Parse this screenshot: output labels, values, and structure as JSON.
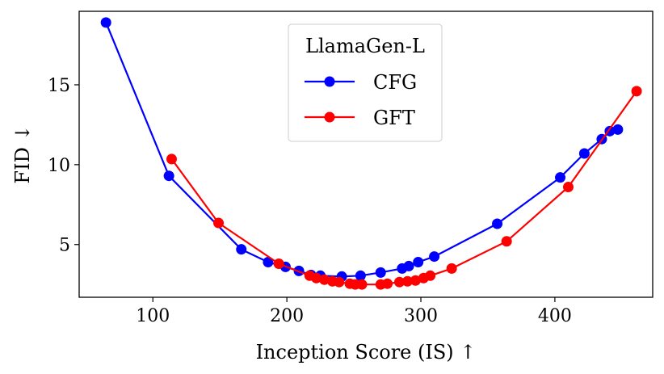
{
  "chart_data": {
    "type": "line",
    "title": "",
    "xlabel": "Inception Score (IS) ↑",
    "ylabel": "FID ↓",
    "xlim": [
      45,
      473
    ],
    "ylim": [
      1.7,
      19.6
    ],
    "xticks": [
      100,
      200,
      300,
      400
    ],
    "yticks": [
      5,
      10,
      15
    ],
    "grid": false,
    "legend": {
      "title": "LlamaGen-L",
      "placement": "top-center"
    },
    "series": [
      {
        "name": "CFG",
        "color": "#0000ff",
        "x": [
          65,
          112,
          166,
          186,
          199,
          209,
          218,
          225,
          241,
          255,
          270,
          286,
          291,
          298,
          310,
          357,
          404,
          422,
          435,
          441,
          447
        ],
        "y": [
          18.9,
          9.3,
          4.7,
          3.9,
          3.6,
          3.35,
          3.1,
          3.05,
          3.0,
          3.05,
          3.25,
          3.5,
          3.65,
          3.9,
          4.25,
          6.3,
          9.2,
          10.7,
          11.6,
          12.1,
          12.2
        ]
      },
      {
        "name": "GFT",
        "color": "#ff0000",
        "x": [
          114,
          149,
          194,
          217,
          222,
          228,
          234,
          239,
          247,
          251,
          256,
          270,
          275,
          284,
          290,
          296,
          302,
          307,
          323,
          364,
          410,
          461
        ],
        "y": [
          10.35,
          6.35,
          3.8,
          3.05,
          2.9,
          2.8,
          2.7,
          2.65,
          2.55,
          2.5,
          2.5,
          2.5,
          2.55,
          2.65,
          2.7,
          2.75,
          2.9,
          3.05,
          3.5,
          5.2,
          8.6,
          14.6
        ]
      }
    ]
  }
}
